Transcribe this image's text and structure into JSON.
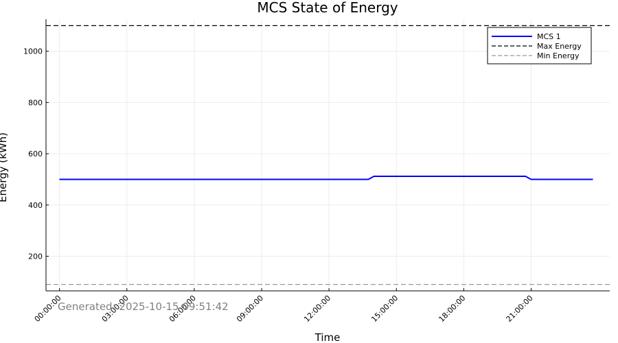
{
  "chart_data": {
    "type": "line",
    "title": "MCS State of Energy",
    "xlabel": "Time",
    "ylabel": "Energy (kWh)",
    "x_range_hours": [
      -0.6,
      24.5
    ],
    "ylim": [
      65,
      1125
    ],
    "x_ticks": [
      {
        "hour": 0,
        "label": "00:00:00"
      },
      {
        "hour": 3,
        "label": "03:00:00"
      },
      {
        "hour": 6,
        "label": "06:00:00"
      },
      {
        "hour": 9,
        "label": "09:00:00"
      },
      {
        "hour": 12,
        "label": "12:00:00"
      },
      {
        "hour": 15,
        "label": "15:00:00"
      },
      {
        "hour": 18,
        "label": "18:00:00"
      },
      {
        "hour": 21,
        "label": "21:00:00"
      }
    ],
    "y_ticks": [
      200,
      400,
      600,
      800,
      1000
    ],
    "grid": true,
    "legend_position": "top-right",
    "series": [
      {
        "name": "MCS 1",
        "color": "#0000ff",
        "style": "solid",
        "points": [
          {
            "hour": 0,
            "y": 500
          },
          {
            "hour": 13.75,
            "y": 500
          },
          {
            "hour": 14.0,
            "y": 512
          },
          {
            "hour": 20.75,
            "y": 512
          },
          {
            "hour": 21.0,
            "y": 500
          },
          {
            "hour": 23.75,
            "y": 500
          }
        ]
      }
    ],
    "reference_lines": [
      {
        "name": "Max Energy",
        "y": 1100,
        "color": "#000000",
        "style": "dashed"
      },
      {
        "name": "Min Energy",
        "y": 90,
        "color": "#999999",
        "style": "dashed"
      }
    ],
    "annotation": "Generated: 2025-10-15 09:51:42"
  }
}
